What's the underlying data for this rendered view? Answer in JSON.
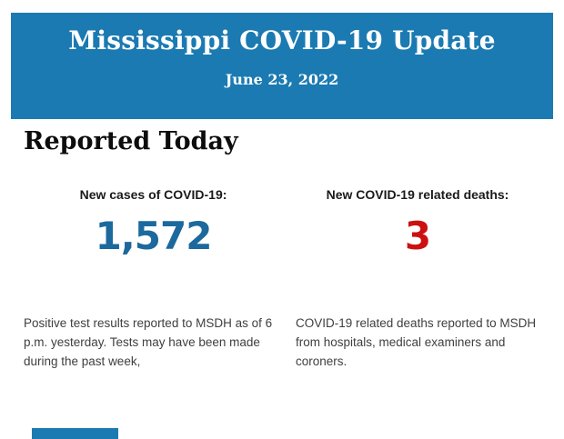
{
  "header": {
    "title": "Mississippi COVID-19 Update",
    "date": "June 23, 2022",
    "bg_color": "#1b7ab1"
  },
  "section": {
    "title": "Reported Today"
  },
  "stats": [
    {
      "label": "New cases of COVID-19:",
      "value": "1,572",
      "value_color": "#1b699d",
      "description": "Positive test results reported to MSDH as of 6 p.m. yesterday. Tests may have been made during the past week,"
    },
    {
      "label": "New COVID-19 related deaths:",
      "value": "3",
      "value_color": "#cc1111",
      "description": "COVID-19 related deaths reported to MSDH from hospitals, medical examiners and coroners."
    }
  ]
}
